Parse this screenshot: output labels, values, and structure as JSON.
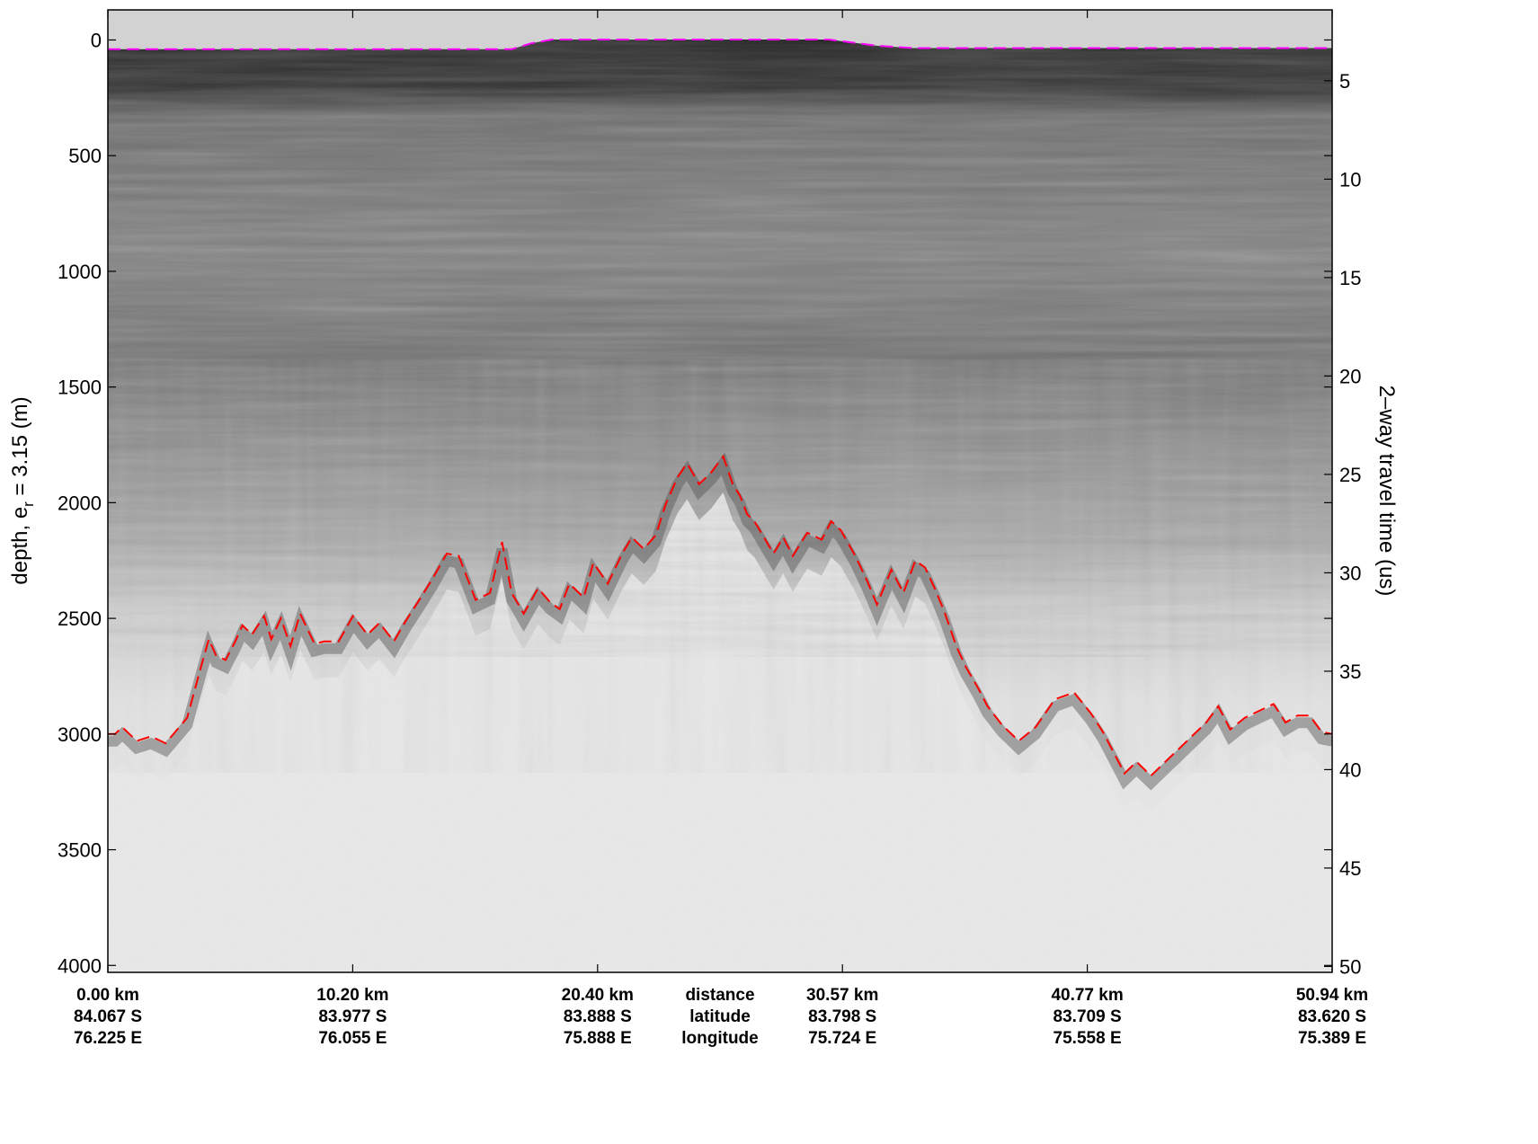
{
  "chart_data": {
    "type": "line",
    "plot_kind": "radar echogram (radargram) with picked surface and bed reflectors",
    "y_label_left_parts": [
      "depth, e",
      "r",
      " = 3.15 (m)"
    ],
    "y_label_right": "2–way travel time (us)",
    "y_ticks_left": [
      0,
      500,
      1000,
      1500,
      2000,
      2500,
      3000,
      3500,
      4000
    ],
    "y_ticks_right": [
      5,
      10,
      15,
      20,
      25,
      30,
      35,
      40,
      45,
      50
    ],
    "ylim_depth_m": [
      -130,
      4030
    ],
    "ylim_twt_us": [
      1.4,
      50.3
    ],
    "yaxis_reversed": true,
    "xlim_km": [
      0,
      50.94
    ],
    "bottom_ticks": [
      {
        "distance": "0.00 km",
        "latitude": "84.067 S",
        "longitude": "76.225 E"
      },
      {
        "distance": "10.20 km",
        "latitude": "83.977 S",
        "longitude": "76.055 E"
      },
      {
        "distance": "20.40 km",
        "latitude": "83.888 S",
        "longitude": "75.888 E"
      },
      {
        "distance": "30.57 km",
        "latitude": "83.798 S",
        "longitude": "75.724 E"
      },
      {
        "distance": "40.77 km",
        "latitude": "83.709 S",
        "longitude": "75.558 E"
      },
      {
        "distance": "50.94 km",
        "latitude": "83.620 S",
        "longitude": "75.389 E"
      }
    ],
    "bottom_header": {
      "distance": "distance",
      "latitude": "latitude",
      "longitude": "longitude"
    },
    "series": [
      {
        "role": "surface pick",
        "color": "#ff00ff",
        "style": "dashed",
        "x_km": [
          0,
          16.8,
          17.6,
          18.5,
          29.3,
          30.0,
          32.0,
          33.5,
          50.94
        ],
        "y_depth_m": [
          40,
          40,
          15,
          -2,
          -2,
          -2,
          25,
          35,
          35
        ]
      },
      {
        "role": "bed pick",
        "color": "#ff0000",
        "style": "dashed",
        "x_km": [
          0,
          0.3,
          0.6,
          1.2,
          1.8,
          2.4,
          3.3,
          3.9,
          4.2,
          4.5,
          4.9,
          5.3,
          5.6,
          6.0,
          6.5,
          6.8,
          7.2,
          7.6,
          8.0,
          8.6,
          9.0,
          9.6,
          10.2,
          10.8,
          11.3,
          11.9,
          12.4,
          12.9,
          13.5,
          14.1,
          14.6,
          15.3,
          15.9,
          16.4,
          16.8,
          17.3,
          17.9,
          18.4,
          18.8,
          19.2,
          19.8,
          20.2,
          20.8,
          21.4,
          21.8,
          22.3,
          22.8,
          23.2,
          23.7,
          24.1,
          24.6,
          25.1,
          25.6,
          26.0,
          26.3,
          26.6,
          26.9,
          27.3,
          27.7,
          28.1,
          28.5,
          29.1,
          29.7,
          30.1,
          30.5,
          31.1,
          31.6,
          32.0,
          32.6,
          33.1,
          33.6,
          34.0,
          34.4,
          34.8,
          35.3,
          35.7,
          36.2,
          36.6,
          37.2,
          37.9,
          38.6,
          39.4,
          40.2,
          40.9,
          41.4,
          41.9,
          42.3,
          42.8,
          43.4,
          44.0,
          44.6,
          45.2,
          45.7,
          46.2,
          46.7,
          47.3,
          47.9,
          48.5,
          49.0,
          49.5,
          50.0,
          50.5,
          50.94
        ],
        "y_depth_m": [
          3000,
          3000,
          2970,
          3030,
          3010,
          3040,
          2930,
          2700,
          2590,
          2660,
          2680,
          2600,
          2530,
          2570,
          2490,
          2590,
          2500,
          2620,
          2480,
          2610,
          2600,
          2600,
          2490,
          2570,
          2520,
          2600,
          2510,
          2430,
          2330,
          2220,
          2230,
          2420,
          2390,
          2170,
          2390,
          2480,
          2370,
          2430,
          2460,
          2350,
          2410,
          2260,
          2350,
          2220,
          2150,
          2200,
          2140,
          2010,
          1890,
          1830,
          1920,
          1870,
          1800,
          1920,
          1970,
          2050,
          2080,
          2150,
          2220,
          2150,
          2230,
          2130,
          2160,
          2080,
          2120,
          2230,
          2340,
          2440,
          2290,
          2390,
          2250,
          2280,
          2370,
          2470,
          2620,
          2710,
          2800,
          2880,
          2960,
          3030,
          2970,
          2850,
          2820,
          2910,
          2990,
          3090,
          3170,
          3120,
          3180,
          3120,
          3060,
          3000,
          2950,
          2880,
          2980,
          2930,
          2900,
          2870,
          2950,
          2920,
          2920,
          2990,
          3000
        ]
      }
    ]
  },
  "style": {
    "surface_color": "#ff00ff",
    "bed_color": "#ff0000",
    "frame_color": "#000000"
  }
}
